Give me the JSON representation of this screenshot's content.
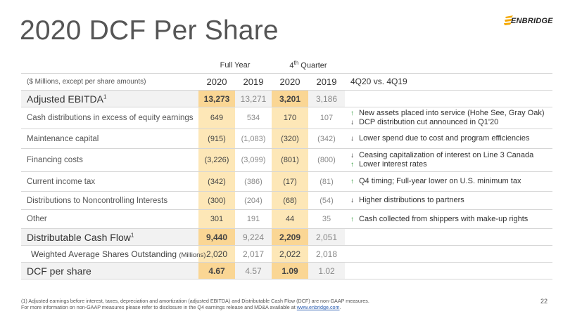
{
  "title": "2020 DCF Per Share",
  "logo_text": "ENBRIDGE",
  "header": {
    "full_year": "Full Year",
    "fourth_quarter_base": "4",
    "fourth_quarter_sup": "th",
    "fourth_quarter_rest": " Quarter",
    "units": "($ Millions, except per share amounts)",
    "cols": [
      "2020",
      "2019",
      "2020",
      "2019"
    ],
    "comparison": "4Q20 vs. 4Q19"
  },
  "rows": [
    {
      "label": "Adjusted EBITDA",
      "sup": "1",
      "values": [
        "13,273",
        "13,271",
        "3,201",
        "3,186"
      ],
      "comments": []
    },
    {
      "label": "Cash distributions in excess of equity earnings",
      "values": [
        "649",
        "534",
        "170",
        "107"
      ],
      "comments": [
        {
          "dir": "up",
          "text": "New assets placed into service (Hohe See, Gray Oak)"
        },
        {
          "dir": "down",
          "text": "DCP distribution cut announced in Q1'20"
        }
      ]
    },
    {
      "label": "Maintenance capital",
      "values": [
        "(915)",
        "(1,083)",
        "(320)",
        "(342)"
      ],
      "comments": [
        {
          "dir": "down",
          "text": "Lower spend due to cost and program efficiencies"
        }
      ]
    },
    {
      "label": "Financing costs",
      "values": [
        "(3,226)",
        "(3,099)",
        "(801)",
        "(800)"
      ],
      "comments": [
        {
          "dir": "down",
          "text": "Ceasing capitalization of interest on Line 3 Canada"
        },
        {
          "dir": "up",
          "text": "Lower interest rates"
        }
      ]
    },
    {
      "label": "Current income tax",
      "values": [
        "(342)",
        "(386)",
        "(17)",
        "(81)"
      ],
      "comments": [
        {
          "dir": "up",
          "text": "Q4 timing; Full-year lower on U.S. minimum tax"
        }
      ]
    },
    {
      "label": "Distributions to Noncontrolling Interests",
      "values": [
        "(300)",
        "(204)",
        "(68)",
        "(54)"
      ],
      "comments": [
        {
          "dir": "down",
          "text": "Higher distributions to partners"
        }
      ]
    },
    {
      "label": "Other",
      "values": [
        "301",
        "191",
        "44",
        "35"
      ],
      "comments": [
        {
          "dir": "up",
          "text": "Cash collected from shippers with make-up rights"
        }
      ]
    },
    {
      "label": "Distributable Cash Flow",
      "sup": "1",
      "values": [
        "9,440",
        "9,224",
        "2,209",
        "2,051"
      ],
      "comments": []
    },
    {
      "label": "Weighted Average Shares Outstanding",
      "label_small": "(Millions)",
      "values": [
        "2,020",
        "2,017",
        "2,022",
        "2,018"
      ],
      "comments": []
    },
    {
      "label": "DCF per share",
      "values": [
        "4.67",
        "4.57",
        "1.09",
        "1.02"
      ],
      "comments": []
    }
  ],
  "footnote": {
    "line1": "(1) Adjusted earnings before interest, taxes, depreciation and amortization (adjusted EBITDA) and Distributable Cash Flow (DCF) are non-GAAP measures.",
    "line2": "For more information on non-GAAP measures please refer to disclosure in the Q4 earnings release and MD&A available at ",
    "link": "www.enbridge.com",
    "line2_end": "."
  },
  "page_number": "22",
  "colors": {
    "highlight_2020": "#fde7b7",
    "highlight_key": "#fad694",
    "up_arrow": "#2e9a3a",
    "down_arrow": "#222222"
  }
}
